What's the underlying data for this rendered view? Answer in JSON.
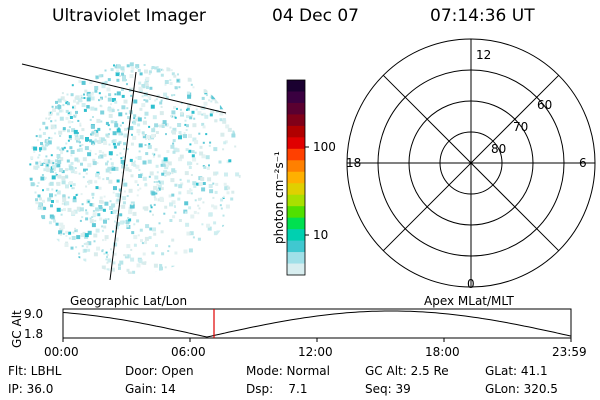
{
  "header": {
    "instrument": "Ultraviolet Imager",
    "date": "04 Dec 07",
    "time": "07:14:36 UT"
  },
  "colorbar": {
    "unit_label": "photon cm⁻²s⁻¹",
    "ticks": [
      "100",
      "10"
    ],
    "colors": [
      "#1a0030",
      "#3a0040",
      "#5a0030",
      "#800018",
      "#b00000",
      "#e00000",
      "#ff4000",
      "#ff8000",
      "#ffb000",
      "#e0d000",
      "#a8e000",
      "#50e000",
      "#00e050",
      "#00d0b0",
      "#40c8d0",
      "#a0e0e8",
      "#d8eef0"
    ]
  },
  "polar_plot": {
    "mlt_labels": [
      "12",
      "18",
      "6",
      "0"
    ],
    "lat_labels": [
      "60",
      "70",
      "80"
    ]
  },
  "left_panel": {
    "label": "Geographic Lat/Lon"
  },
  "right_panel": {
    "label": "Apex MLat/MLT"
  },
  "altitude_plot": {
    "axis_label": "GC Alt",
    "y_ticks": [
      "9.0",
      "1.8"
    ],
    "x_ticks": [
      "00:00",
      "06:00",
      "12:00",
      "18:00",
      "23:59"
    ],
    "current_time": "07:14:36",
    "marker_color": "#e00000"
  },
  "info": {
    "row1": [
      "Flt: LBHL",
      "Door: Open",
      "Mode: Normal",
      "GC Alt: 2.5 Re",
      "GLat: 41.1"
    ],
    "row2": [
      "IP: 36.0",
      "Gain: 14",
      "Dsp:    7.1",
      "Seq: 39",
      "GLon: 320.5"
    ]
  }
}
